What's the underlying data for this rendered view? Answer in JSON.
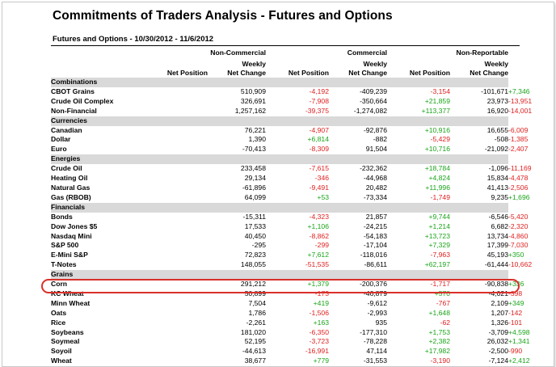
{
  "title": "Commitments of Traders Analysis - Futures and Options",
  "subtitle": "Futures and Options - 10/30/2012 - 11/6/2012",
  "groups": {
    "noncommercial": "Non-Commercial",
    "commercial": "Commercial",
    "nonreportable": "Non-Reportable"
  },
  "columns": {
    "net_position": "Net Position",
    "weekly": "Weekly",
    "net_change": "Net Change"
  },
  "rows": [
    {
      "type": "section",
      "label": "Combinations"
    },
    {
      "label": "CBOT Grains",
      "nc_net": "510,909",
      "nc_chg": "-4,192",
      "c_net": "-409,239",
      "c_chg": "-3,154",
      "nr_net": "-101,671",
      "nr_chg": "+7,346"
    },
    {
      "label": "Crude Oil Complex",
      "nc_net": "326,691",
      "nc_chg": "-7,908",
      "c_net": "-350,664",
      "c_chg": "+21,859",
      "nr_net": "23,973",
      "nr_chg": "-13,951"
    },
    {
      "label": "Non-Financial",
      "nc_net": "1,257,162",
      "nc_chg": "-39,375",
      "c_net": "-1,274,082",
      "c_chg": "+113,377",
      "nr_net": "16,920",
      "nr_chg": "-14,001"
    },
    {
      "type": "section",
      "label": "Currencies"
    },
    {
      "label": "Canadian",
      "nc_net": "76,221",
      "nc_chg": "-4,907",
      "c_net": "-92,876",
      "c_chg": "+10,916",
      "nr_net": "16,655",
      "nr_chg": "-6,009"
    },
    {
      "label": "Dollar",
      "nc_net": "1,390",
      "nc_chg": "+6,814",
      "c_net": "-882",
      "c_chg": "-5,429",
      "nr_net": "-508",
      "nr_chg": "-1,385"
    },
    {
      "label": "Euro",
      "nc_net": "-70,413",
      "nc_chg": "-8,309",
      "c_net": "91,504",
      "c_chg": "+10,716",
      "nr_net": "-21,092",
      "nr_chg": "-2,407"
    },
    {
      "type": "section",
      "label": "Energies"
    },
    {
      "label": "Crude Oil",
      "nc_net": "233,458",
      "nc_chg": "-7,615",
      "c_net": "-232,362",
      "c_chg": "+18,784",
      "nr_net": "-1,096",
      "nr_chg": "-11,169"
    },
    {
      "label": "Heating Oil",
      "nc_net": "29,134",
      "nc_chg": "-346",
      "c_net": "-44,968",
      "c_chg": "+4,824",
      "nr_net": "15,834",
      "nr_chg": "-4,478"
    },
    {
      "label": "Natural Gas",
      "nc_net": "-61,896",
      "nc_chg": "-9,491",
      "c_net": "20,482",
      "c_chg": "+11,996",
      "nr_net": "41,413",
      "nr_chg": "-2,506"
    },
    {
      "label": "Gas (RBOB)",
      "nc_net": "64,099",
      "nc_chg": "+53",
      "c_net": "-73,334",
      "c_chg": "-1,749",
      "nr_net": "9,235",
      "nr_chg": "+1,696"
    },
    {
      "type": "section",
      "label": "Financials"
    },
    {
      "label": "Bonds",
      "nc_net": "-15,311",
      "nc_chg": "-4,323",
      "c_net": "21,857",
      "c_chg": "+9,744",
      "nr_net": "-6,546",
      "nr_chg": "-5,420"
    },
    {
      "label": "Dow Jones $5",
      "nc_net": "17,533",
      "nc_chg": "+1,106",
      "c_net": "-24,215",
      "c_chg": "+1,214",
      "nr_net": "6,682",
      "nr_chg": "-2,320"
    },
    {
      "label": "Nasdaq Mini",
      "nc_net": "40,450",
      "nc_chg": "-8,862",
      "c_net": "-54,183",
      "c_chg": "+13,723",
      "nr_net": "13,734",
      "nr_chg": "-4,860"
    },
    {
      "label": "S&P 500",
      "nc_net": "-295",
      "nc_chg": "-299",
      "c_net": "-17,104",
      "c_chg": "+7,329",
      "nr_net": "17,399",
      "nr_chg": "-7,030"
    },
    {
      "label": "E-Mini S&P",
      "nc_net": "72,823",
      "nc_chg": "+7,612",
      "c_net": "-118,016",
      "c_chg": "-7,963",
      "nr_net": "45,193",
      "nr_chg": "+350"
    },
    {
      "label": "T-Notes",
      "nc_net": "148,055",
      "nc_chg": "-51,535",
      "c_net": "-86,611",
      "c_chg": "+62,197",
      "nr_net": "-61,444",
      "nr_chg": "-10,662"
    },
    {
      "type": "section",
      "label": "Grains"
    },
    {
      "label": "Corn",
      "nc_net": "291,212",
      "nc_chg": "+1,379",
      "c_net": "-200,376",
      "c_chg": "-1,717",
      "nr_net": "-90,838",
      "nr_chg": "+336"
    },
    {
      "label": "KC Wheat",
      "nc_net": "50,899",
      "nc_chg": "-173",
      "c_net": "-46,879",
      "c_chg": "+570",
      "nr_net": "-4,021",
      "nr_chg": "-398"
    },
    {
      "label": "Minn Wheat",
      "nc_net": "7,504",
      "nc_chg": "+419",
      "c_net": "-9,612",
      "c_chg": "-767",
      "nr_net": "2,109",
      "nr_chg": "+349"
    },
    {
      "label": "Oats",
      "nc_net": "1,786",
      "nc_chg": "-1,506",
      "c_net": "-2,993",
      "c_chg": "+1,648",
      "nr_net": "1,207",
      "nr_chg": "-142"
    },
    {
      "label": "Rice",
      "nc_net": "-2,261",
      "nc_chg": "+163",
      "c_net": "935",
      "c_chg": "-62",
      "nr_net": "1,326",
      "nr_chg": "-101"
    },
    {
      "label": "Soybeans",
      "nc_net": "181,020",
      "nc_chg": "-6,350",
      "c_net": "-177,310",
      "c_chg": "+1,753",
      "nr_net": "-3,709",
      "nr_chg": "+4,598"
    },
    {
      "label": "Soymeal",
      "nc_net": "52,195",
      "nc_chg": "-3,723",
      "c_net": "-78,228",
      "c_chg": "+2,382",
      "nr_net": "26,032",
      "nr_chg": "+1,341"
    },
    {
      "label": "Soyoil",
      "nc_net": "-44,613",
      "nc_chg": "-16,991",
      "c_net": "47,114",
      "c_chg": "+17,982",
      "nr_net": "-2,500",
      "nr_chg": "-990"
    },
    {
      "label": "Wheat",
      "nc_net": "38,677",
      "nc_chg": "+779",
      "c_net": "-31,553",
      "c_chg": "-3,190",
      "nr_net": "-7,124",
      "nr_chg": "+2,412"
    }
  ],
  "colors": {
    "negative": "#e02020",
    "positive": "#1aa51a",
    "section_bg": "#d9d9d9",
    "highlight": "#d9302a"
  },
  "highlighted_row": "Corn"
}
